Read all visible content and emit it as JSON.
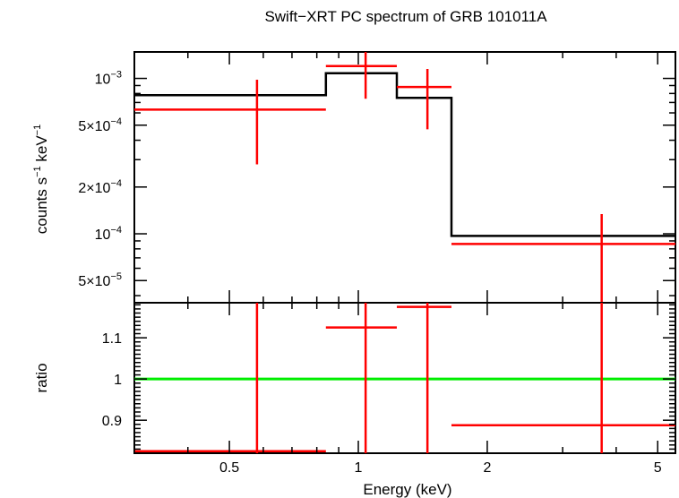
{
  "title": "Swift−XRT PC spectrum of GRB 101011A",
  "chart_data": [
    {
      "type": "step+errorbar",
      "panel": "spectrum",
      "ylabel_base": "counts s",
      "ylabel_exp1": "−1",
      "ylabel_mid": " keV",
      "ylabel_exp2": "−1",
      "xscale": "log",
      "yscale": "log",
      "xlim": [
        0.3,
        5.5
      ],
      "ylim": [
        3.6e-05,
        0.00148
      ],
      "yticks": [
        {
          "value": 0.001,
          "mant": "10",
          "exp": "−3"
        },
        {
          "value": 0.0005,
          "mant": "5×10",
          "exp": "−4"
        },
        {
          "value": 0.0002,
          "mant": "2×10",
          "exp": "−4"
        },
        {
          "value": 0.0001,
          "mant": "10",
          "exp": "−4"
        },
        {
          "value": 5e-05,
          "mant": "5×10",
          "exp": "−5"
        }
      ],
      "model": {
        "name": "model",
        "bins": [
          {
            "x0": 0.3,
            "x1": 0.84,
            "y": 0.00078
          },
          {
            "x0": 0.84,
            "x1": 1.23,
            "y": 0.00108
          },
          {
            "x0": 1.23,
            "x1": 1.65,
            "y": 0.00075
          },
          {
            "x0": 1.65,
            "x1": 5.5,
            "y": 9.7e-05
          }
        ]
      },
      "data": {
        "name": "data",
        "points": [
          {
            "x": 0.58,
            "xlo": 0.3,
            "xhi": 0.84,
            "y": 0.00063,
            "ylo": 0.00028,
            "yhi": 0.00098
          },
          {
            "x": 1.04,
            "xlo": 0.84,
            "xhi": 1.23,
            "y": 0.0012,
            "ylo": 0.00074,
            "yhi": 0.00148
          },
          {
            "x": 1.45,
            "xlo": 1.23,
            "xhi": 1.65,
            "y": 0.00088,
            "ylo": 0.00047,
            "yhi": 0.00115
          },
          {
            "x": 3.7,
            "xlo": 1.65,
            "xhi": 5.5,
            "y": 8.6e-05,
            "ylo": 3.6e-05,
            "yhi": 0.000134
          }
        ]
      }
    },
    {
      "type": "errorbar",
      "panel": "ratio",
      "xlabel": "Energy (keV)",
      "ylabel": "ratio",
      "xscale": "log",
      "xlim": [
        0.3,
        5.5
      ],
      "ylim": [
        0.82,
        1.185
      ],
      "xticks": [
        {
          "value": 0.5,
          "label": "0.5"
        },
        {
          "value": 1,
          "label": "1"
        },
        {
          "value": 2,
          "label": "2"
        },
        {
          "value": 5,
          "label": "5"
        }
      ],
      "yticks": [
        {
          "value": 1.1,
          "label": "1.1"
        },
        {
          "value": 1,
          "label": "1"
        },
        {
          "value": 0.9,
          "label": "0.9"
        }
      ],
      "reference_line": 1,
      "points": [
        {
          "x": 0.58,
          "xlo": 0.3,
          "xhi": 0.84,
          "y": 0.825,
          "ylo": 0.82,
          "yhi": 1.185
        },
        {
          "x": 1.04,
          "xlo": 0.84,
          "xhi": 1.23,
          "y": 1.125,
          "ylo": 0.82,
          "yhi": 1.185
        },
        {
          "x": 1.45,
          "xlo": 1.23,
          "xhi": 1.65,
          "y": 1.175,
          "ylo": 0.82,
          "yhi": 1.185
        },
        {
          "x": 3.7,
          "xlo": 1.65,
          "xhi": 5.5,
          "y": 0.888,
          "ylo": 0.82,
          "yhi": 1.185
        }
      ]
    }
  ],
  "colors": {
    "model": "#000000",
    "data": "#ff0000",
    "reference": "#00ee00",
    "axes": "#000000"
  }
}
